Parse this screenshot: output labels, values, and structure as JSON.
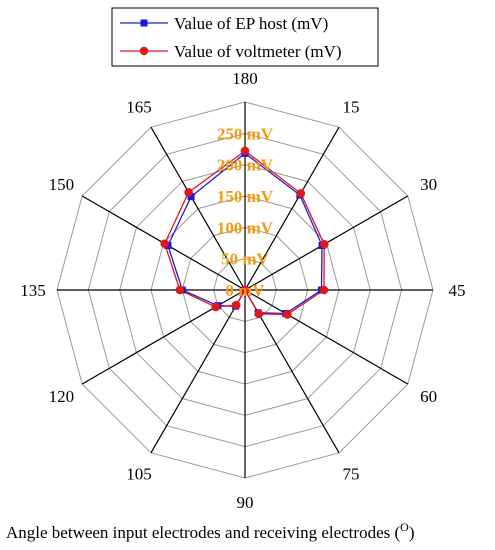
{
  "chart_data": {
    "type": "radar",
    "categories": [
      "180",
      "15",
      "30",
      "45",
      "60",
      "75",
      "90",
      "105",
      "120",
      "135",
      "150",
      "165"
    ],
    "series": [
      {
        "name": "Value of EP host (mV)",
        "color": "#1a1adb",
        "marker": "square",
        "values": [
          218,
          175,
          142,
          122,
          75,
          42,
          0,
          30,
          50,
          100,
          142,
          172
        ]
      },
      {
        "name": "Value of voltmeter (mV)",
        "color": "#e0161c",
        "marker": "circle",
        "values": [
          222,
          178,
          146,
          126,
          78,
          44,
          0,
          28,
          54,
          104,
          148,
          180
        ]
      }
    ],
    "r_ticks": [
      0,
      50,
      100,
      150,
      200,
      250
    ],
    "r_tick_labels": [
      "0 mV",
      "50 mV",
      "100 mV",
      "150 mV",
      "200 mV",
      "250 mV"
    ],
    "r_max": 300,
    "xlabel": "Angle between input electrodes and receiving electrodes (O)",
    "xlabel_main": "Angle between input electrodes and receiving electrodes (",
    "xlabel_sup": "O",
    "xlabel_close": ")",
    "legend_position": "top-center",
    "grid": true,
    "tick_color": "#f39c12"
  }
}
